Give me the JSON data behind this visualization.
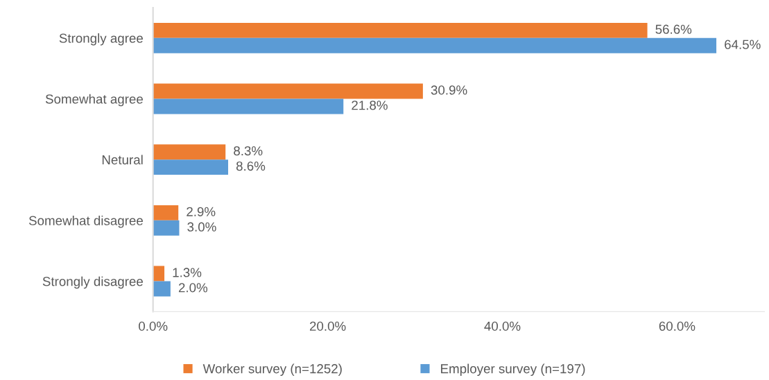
{
  "chart_data": {
    "type": "bar",
    "orientation": "horizontal",
    "categories": [
      "Strongly agree",
      "Somewhat agree",
      "Netural",
      "Somewhat disagree",
      "Strongly disagree"
    ],
    "series": [
      {
        "name": "Worker survey (n=1252)",
        "color": "#ed7d31",
        "values": [
          56.6,
          30.9,
          8.3,
          2.9,
          1.3
        ],
        "value_labels": [
          "56.6%",
          "30.9%",
          "8.3%",
          "2.9%",
          "1.3%"
        ]
      },
      {
        "name": "Employer survey (n=197)",
        "color": "#5b9bd5",
        "values": [
          64.5,
          21.8,
          8.6,
          3.0,
          2.0
        ],
        "value_labels": [
          "64.5%",
          "21.8%",
          "8.6%",
          "3.0%",
          "2.0%"
        ]
      }
    ],
    "xlim": [
      0,
      70
    ],
    "xticks": [
      {
        "value": 0,
        "label": "0.0%"
      },
      {
        "value": 20,
        "label": "20.0%"
      },
      {
        "value": 40,
        "label": "40.0%"
      },
      {
        "value": 60,
        "label": "60.0%"
      }
    ],
    "grid": false,
    "legend": "bottom"
  }
}
